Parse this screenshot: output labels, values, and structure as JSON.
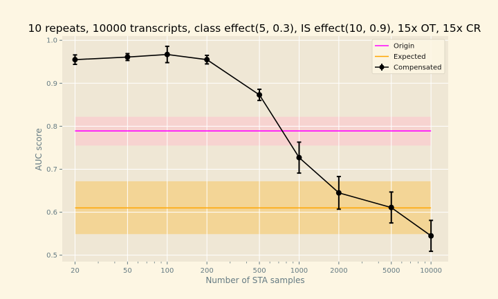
{
  "chart_data": {
    "type": "line",
    "title": "10 repeats, 10000 transcripts, class effect(5, 0.3), IS effect(10, 0.9), 15x OT, 15x CR",
    "xlabel": "Number of STA samples",
    "ylabel": "AUC score",
    "xscale": "log",
    "xlim": [
      16,
      13500
    ],
    "ylim": [
      0.485,
      1.01
    ],
    "x_ticks": [
      20,
      50,
      100,
      200,
      500,
      1000,
      2000,
      5000,
      10000
    ],
    "x_tick_labels": [
      "20",
      "50",
      "100",
      "200",
      "500",
      "1000",
      "2000",
      "5000",
      "10000"
    ],
    "y_ticks": [
      0.5,
      0.6,
      0.7,
      0.8,
      0.9,
      1.0
    ],
    "y_tick_labels": [
      "0.5",
      "0.6",
      "0.7",
      "0.8",
      "0.9",
      "1.0"
    ],
    "grid": true,
    "legend_position": "top-right",
    "bands": [
      {
        "name": "Origin",
        "color": "#ff00ff",
        "fill": "#f7d3d0",
        "x": [
          20,
          10000
        ],
        "value": 0.789,
        "lower": 0.755,
        "upper": 0.822
      },
      {
        "name": "Expected",
        "color": "#ffa500",
        "fill": "#f3d596",
        "x": [
          20,
          10000
        ],
        "value": 0.61,
        "lower": 0.549,
        "upper": 0.672
      }
    ],
    "series": [
      {
        "name": "Compensated",
        "color": "#000000",
        "x": [
          20,
          50,
          100,
          200,
          500,
          1000,
          2000,
          5000,
          10000
        ],
        "y": [
          0.955,
          0.961,
          0.967,
          0.955,
          0.873,
          0.727,
          0.645,
          0.611,
          0.545
        ],
        "yerr": [
          0.011,
          0.008,
          0.019,
          0.01,
          0.013,
          0.036,
          0.038,
          0.036,
          0.036
        ]
      }
    ]
  }
}
